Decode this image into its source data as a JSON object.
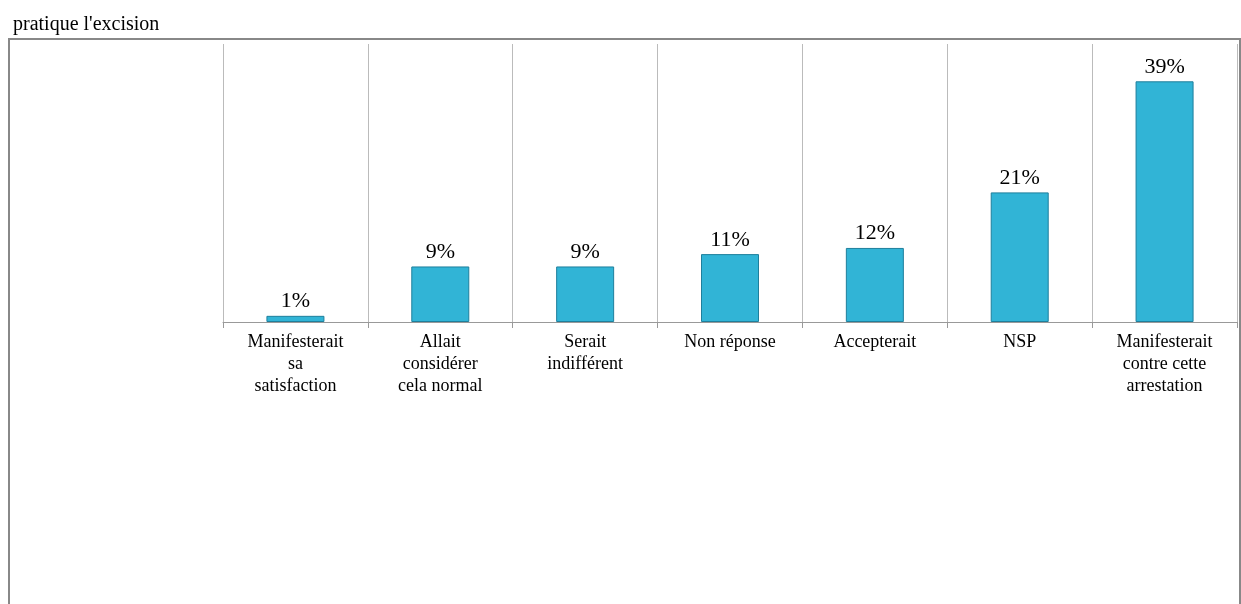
{
  "chart_data": {
    "type": "bar",
    "title": "pratique l'excision",
    "categories": [
      "Manifesterait sa satisfaction",
      "Allait considérer cela normal",
      "Serait indifférent",
      "Non réponse",
      "Accepterait",
      "NSP",
      "Manifesterait contre cette arrestation"
    ],
    "values": [
      1,
      9,
      9,
      11,
      12,
      21,
      39
    ],
    "value_labels": [
      "1%",
      "9%",
      "9%",
      "11%",
      "12%",
      "21%",
      "39%"
    ],
    "color": "#31b4d6",
    "grid": "x"
  }
}
